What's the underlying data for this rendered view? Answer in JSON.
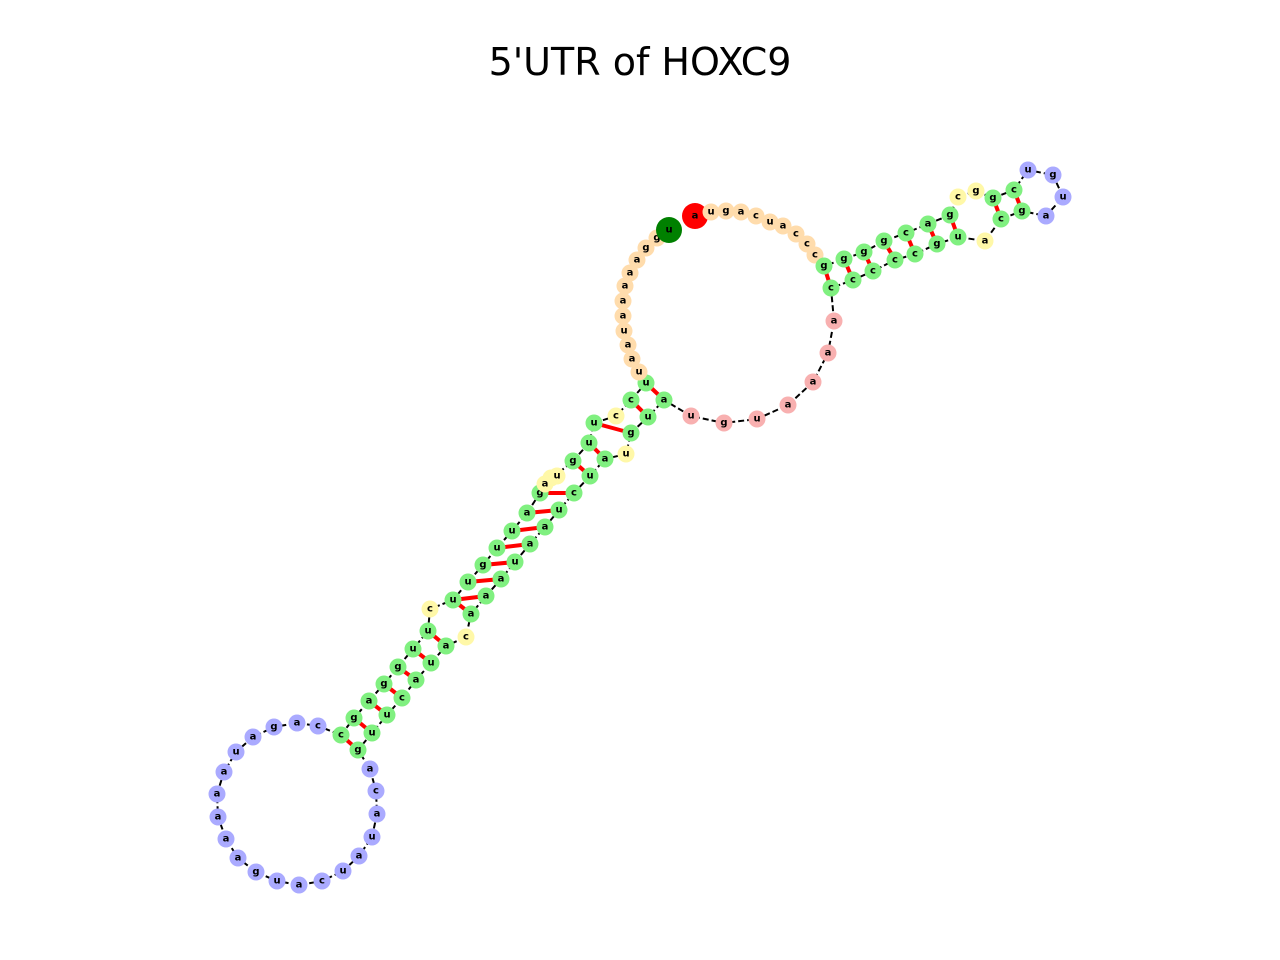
{
  "title": "5'UTR of HOXC9",
  "sequence": "uaggaaaaauaaucaccuuguugaucggaugucaauuacaaacccgauguaaaaacaaaauuuaacaacucgcacuuuguggaucucgaaugguaaaaguccacgcaaggaaggaaaccauuagg",
  "colors": {
    "stem": "#80f080",
    "hairpin_loop": "#aaaaff",
    "interior_loop": "#fff8a8",
    "external_loop": "#ffdcac",
    "multiloop": "#f8b0b0",
    "start": "#ff0000",
    "end": "#008000",
    "pair_line": "#ff0000",
    "backbone": "#000000"
  }
}
